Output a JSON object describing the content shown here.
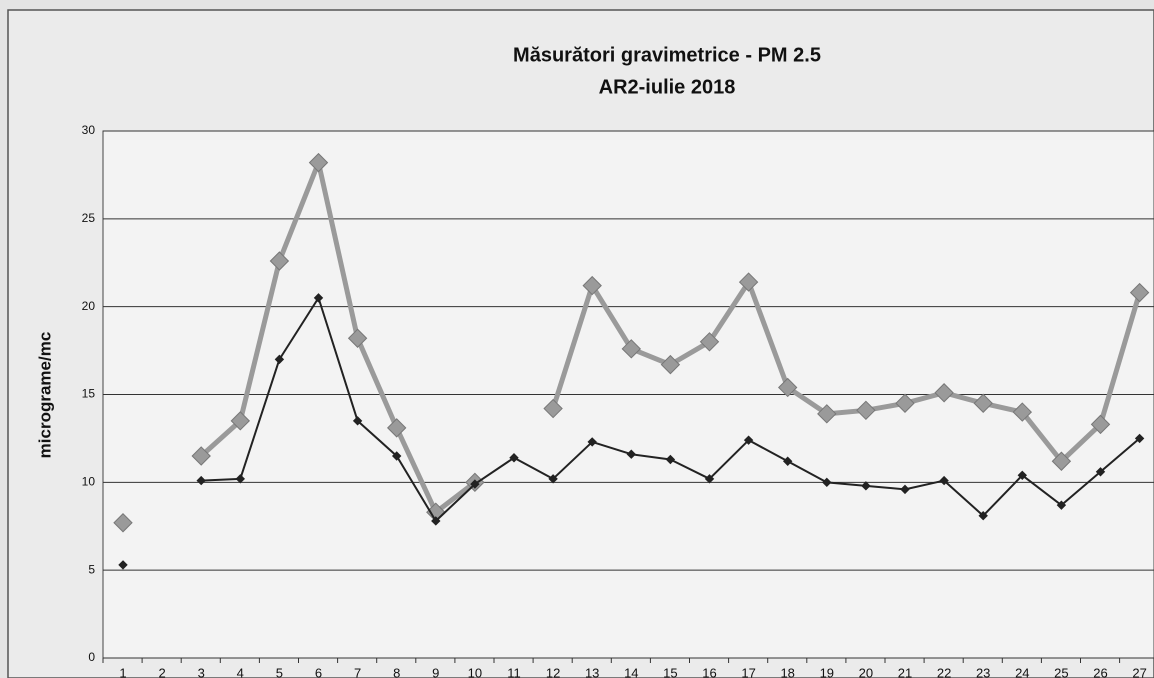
{
  "chart_data": {
    "type": "line",
    "title": "Măsurători gravimetrice - PM 2.5",
    "subtitle": "AR2-iulie 2018",
    "y_label": "micrograme/mc",
    "categories": [
      "1",
      "2",
      "3",
      "4",
      "5",
      "6",
      "7",
      "8",
      "9",
      "10",
      "11",
      "12",
      "13",
      "14",
      "15",
      "16",
      "17",
      "18",
      "19",
      "20",
      "21",
      "22",
      "23",
      "24",
      "25",
      "26",
      "27"
    ],
    "series": [
      {
        "color": "#9a9a9a",
        "values": [
          7.7,
          null,
          11.5,
          13.5,
          22.6,
          28.2,
          18.2,
          13.1,
          8.3,
          10.0,
          null,
          14.2,
          21.2,
          17.6,
          16.7,
          18.0,
          21.4,
          15.4,
          13.9,
          14.1,
          14.5,
          15.1,
          14.5,
          14.0,
          11.2,
          13.3,
          20.8
        ]
      },
      {
        "color": "#222222",
        "values": [
          5.3,
          null,
          10.1,
          10.2,
          17.0,
          20.5,
          13.5,
          11.5,
          7.8,
          9.9,
          11.4,
          10.2,
          12.3,
          11.6,
          11.3,
          10.2,
          12.4,
          11.2,
          10.0,
          9.8,
          9.6,
          10.1,
          8.1,
          10.4,
          8.7,
          10.6,
          12.5
        ]
      }
    ],
    "ylim": [
      0,
      30
    ],
    "yticks": [
      0,
      5,
      10,
      15,
      20,
      25,
      30
    ],
    "grid": true
  }
}
